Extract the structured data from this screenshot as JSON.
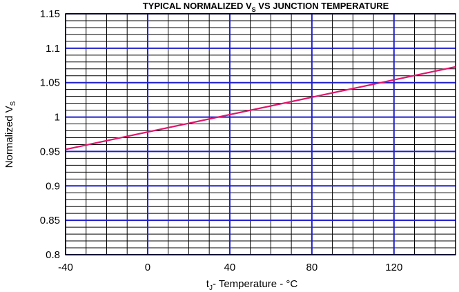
{
  "chart_data": {
    "type": "line",
    "title": {
      "main": "TYPICAL NORMALIZED V",
      "sub": "S",
      "rest": "  VS JUNCTION TEMPERATURE"
    },
    "xlabel": {
      "prefix": "t",
      "sub": "J",
      "rest": "- Temperature - °C"
    },
    "ylabel": {
      "prefix": "Normalized V",
      "sub": "S"
    },
    "xlim": [
      -40,
      150
    ],
    "ylim": [
      0.8,
      1.15
    ],
    "x_ticks": [
      -40,
      0,
      40,
      80,
      120
    ],
    "x_tick_labels": [
      "-40",
      "0",
      "40",
      "80",
      "120"
    ],
    "y_ticks": [
      0.8,
      0.85,
      0.9,
      0.95,
      1.0,
      1.05,
      1.1,
      1.15
    ],
    "y_tick_labels": [
      "0.8",
      "0.85",
      "0.9",
      "0.95",
      "1",
      "1.05",
      "1.1",
      "1.15"
    ],
    "grid": true,
    "major_grid_color": "#1f1fcc",
    "minor_grid_color": "#000000",
    "series": [
      {
        "color": "#e0156b",
        "x": [
          -40,
          150
        ],
        "y": [
          0.953,
          1.073
        ]
      }
    ]
  }
}
